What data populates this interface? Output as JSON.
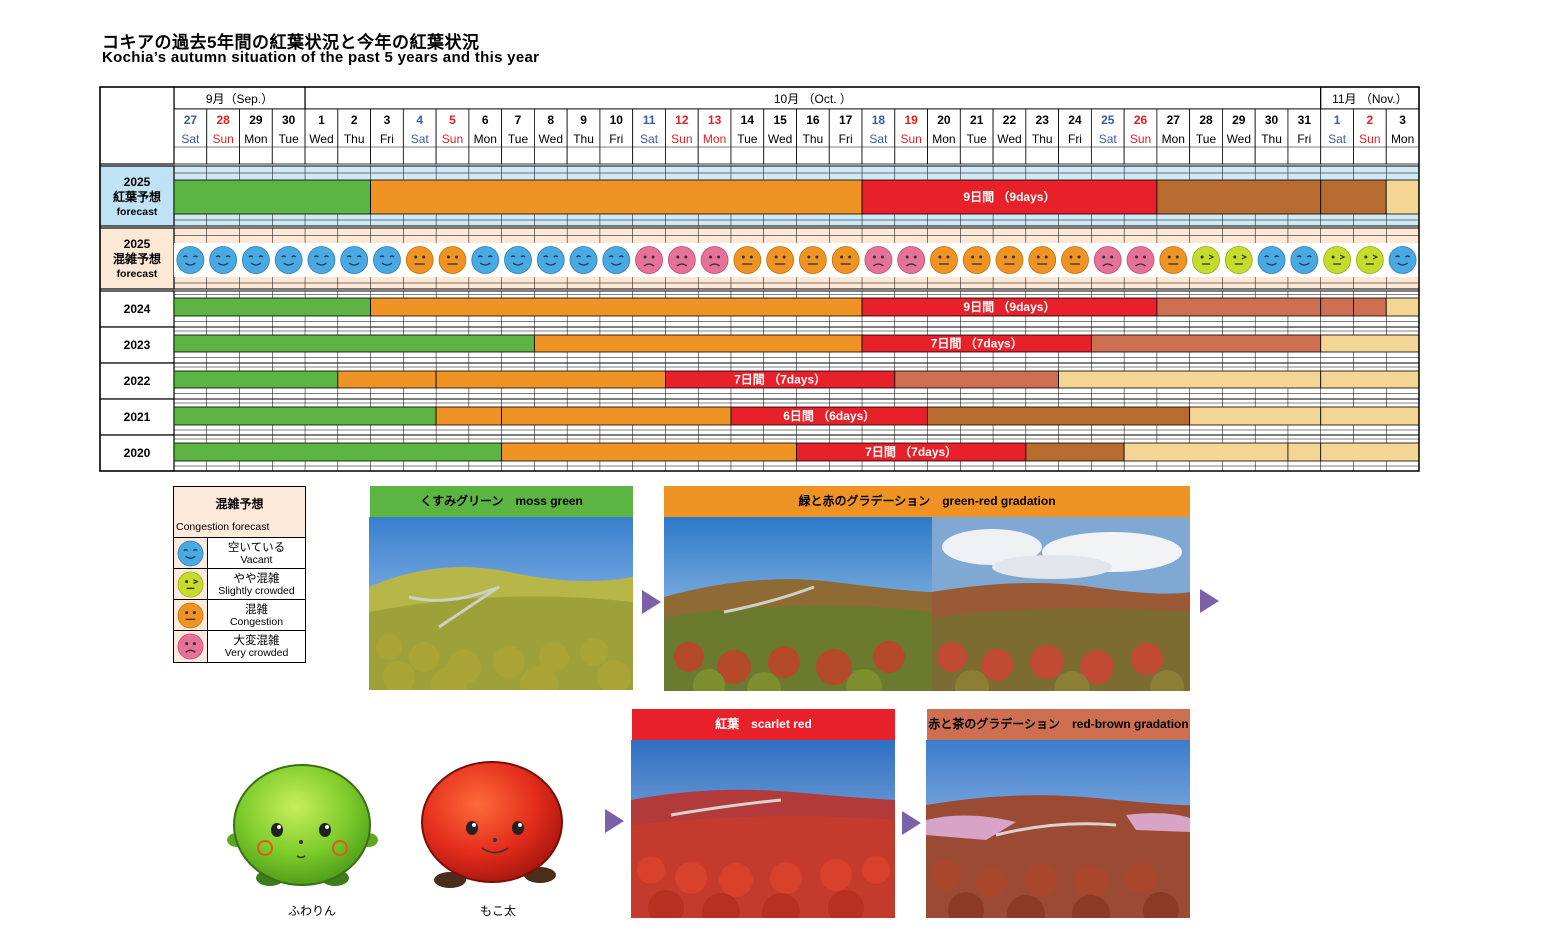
{
  "title": "コキアの過去5年間の紅葉状況と今年の紅葉状況",
  "subtitle": "Kochia’s autumn situation of the past 5 years and this year",
  "chart_data": {
    "type": "table",
    "months": [
      {
        "label": "9月（Sep.）",
        "start": 0,
        "span": 4
      },
      {
        "label": "10月 （Oct. ）",
        "start": 4,
        "span": 31
      },
      {
        "label": "11月 （Nov.）",
        "start": 35,
        "span": 3
      }
    ],
    "days": [
      {
        "d": "27",
        "w": "Sat",
        "c": "blue"
      },
      {
        "d": "28",
        "w": "Sun",
        "c": "red"
      },
      {
        "d": "29",
        "w": "Mon",
        "c": ""
      },
      {
        "d": "30",
        "w": "Tue",
        "c": ""
      },
      {
        "d": "1",
        "w": "Wed",
        "c": ""
      },
      {
        "d": "2",
        "w": "Thu",
        "c": ""
      },
      {
        "d": "3",
        "w": "Fri",
        "c": ""
      },
      {
        "d": "4",
        "w": "Sat",
        "c": "blue"
      },
      {
        "d": "5",
        "w": "Sun",
        "c": "red"
      },
      {
        "d": "6",
        "w": "Mon",
        "c": ""
      },
      {
        "d": "7",
        "w": "Tue",
        "c": ""
      },
      {
        "d": "8",
        "w": "Wed",
        "c": ""
      },
      {
        "d": "9",
        "w": "Thu",
        "c": ""
      },
      {
        "d": "10",
        "w": "Fri",
        "c": ""
      },
      {
        "d": "11",
        "w": "Sat",
        "c": "blue"
      },
      {
        "d": "12",
        "w": "Sun",
        "c": "red"
      },
      {
        "d": "13",
        "w": "Mon",
        "c": "red"
      },
      {
        "d": "14",
        "w": "Tue",
        "c": ""
      },
      {
        "d": "15",
        "w": "Wed",
        "c": ""
      },
      {
        "d": "16",
        "w": "Thu",
        "c": ""
      },
      {
        "d": "17",
        "w": "Fri",
        "c": ""
      },
      {
        "d": "18",
        "w": "Sat",
        "c": "blue"
      },
      {
        "d": "19",
        "w": "Sun",
        "c": "red"
      },
      {
        "d": "20",
        "w": "Mon",
        "c": ""
      },
      {
        "d": "21",
        "w": "Tue",
        "c": ""
      },
      {
        "d": "22",
        "w": "Wed",
        "c": ""
      },
      {
        "d": "23",
        "w": "Thu",
        "c": ""
      },
      {
        "d": "24",
        "w": "Fri",
        "c": ""
      },
      {
        "d": "25",
        "w": "Sat",
        "c": "blue"
      },
      {
        "d": "26",
        "w": "Sun",
        "c": "red"
      },
      {
        "d": "27",
        "w": "Mon",
        "c": ""
      },
      {
        "d": "28",
        "w": "Tue",
        "c": ""
      },
      {
        "d": "29",
        "w": "Wed",
        "c": ""
      },
      {
        "d": "30",
        "w": "Thu",
        "c": ""
      },
      {
        "d": "31",
        "w": "Fri",
        "c": ""
      },
      {
        "d": "1",
        "w": "Sat",
        "c": "blue"
      },
      {
        "d": "2",
        "w": "Sun",
        "c": "red"
      },
      {
        "d": "3",
        "w": "Mon",
        "c": ""
      }
    ],
    "stage_colors": {
      "green": "#5cb443",
      "orange": "#ef9424",
      "red": "#e8202a",
      "brown": "#b86b2e",
      "rust": "#cf6f52",
      "tan": "#f4d593"
    },
    "rows": [
      {
        "key": "forecast",
        "label": [
          "2025",
          "紅葉予想",
          "forecast"
        ],
        "segments": [
          {
            "stage": "green",
            "from": 0,
            "to": 6
          },
          {
            "stage": "orange",
            "from": 6,
            "to": 21
          },
          {
            "stage": "red",
            "from": 21,
            "to": 30,
            "label": "9日間 （9days）"
          },
          {
            "stage": "brown",
            "from": 30,
            "to": 35
          },
          {
            "stage": "brown",
            "from": 35,
            "to": 37
          },
          {
            "stage": "tan",
            "from": 37,
            "to": 38
          }
        ]
      },
      {
        "key": "congestion",
        "label": [
          "2025",
          "混雑予想",
          "forecast"
        ],
        "levels": [
          "vacant",
          "vacant",
          "vacant",
          "vacant",
          "vacant",
          "vacant",
          "vacant",
          "congestion",
          "congestion",
          "vacant",
          "vacant",
          "vacant",
          "vacant",
          "vacant",
          "very",
          "very",
          "very",
          "congestion",
          "congestion",
          "congestion",
          "congestion",
          "very",
          "very",
          "congestion",
          "congestion",
          "congestion",
          "congestion",
          "congestion",
          "very",
          "very",
          "congestion",
          "slight",
          "slight",
          "vacant",
          "vacant",
          "slight",
          "slight",
          "vacant"
        ]
      },
      {
        "key": "2024",
        "label": [
          "2024"
        ],
        "segments": [
          {
            "stage": "green",
            "from": 0,
            "to": 6
          },
          {
            "stage": "orange",
            "from": 6,
            "to": 21
          },
          {
            "stage": "red",
            "from": 21,
            "to": 30,
            "label": "9日間 （9days）"
          },
          {
            "stage": "rust",
            "from": 30,
            "to": 35
          },
          {
            "stage": "rust",
            "from": 35,
            "to": 36
          },
          {
            "stage": "rust",
            "from": 36,
            "to": 37
          },
          {
            "stage": "tan",
            "from": 37,
            "to": 38
          }
        ]
      },
      {
        "key": "2023",
        "label": [
          "2023"
        ],
        "segments": [
          {
            "stage": "green",
            "from": 0,
            "to": 11
          },
          {
            "stage": "orange",
            "from": 11,
            "to": 21
          },
          {
            "stage": "red",
            "from": 21,
            "to": 28,
            "label": "7日間 （7days）"
          },
          {
            "stage": "rust",
            "from": 28,
            "to": 35
          },
          {
            "stage": "tan",
            "from": 35,
            "to": 38
          }
        ]
      },
      {
        "key": "2022",
        "label": [
          "2022"
        ],
        "segments": [
          {
            "stage": "green",
            "from": 0,
            "to": 5
          },
          {
            "stage": "orange",
            "from": 5,
            "to": 8
          },
          {
            "stage": "orange",
            "from": 8,
            "to": 15
          },
          {
            "stage": "red",
            "from": 15,
            "to": 22,
            "label": "7日間 （7days）"
          },
          {
            "stage": "rust",
            "from": 22,
            "to": 27
          },
          {
            "stage": "tan",
            "from": 27,
            "to": 35
          },
          {
            "stage": "tan",
            "from": 35,
            "to": 38
          }
        ]
      },
      {
        "key": "2021",
        "label": [
          "2021"
        ],
        "segments": [
          {
            "stage": "green",
            "from": 0,
            "to": 8
          },
          {
            "stage": "orange",
            "from": 8,
            "to": 10
          },
          {
            "stage": "orange",
            "from": 10,
            "to": 17
          },
          {
            "stage": "red",
            "from": 17,
            "to": 23,
            "label": "6日間 （6days）"
          },
          {
            "stage": "brown",
            "from": 23,
            "to": 31
          },
          {
            "stage": "tan",
            "from": 31,
            "to": 35
          },
          {
            "stage": "tan",
            "from": 35,
            "to": 38
          }
        ]
      },
      {
        "key": "2020",
        "label": [
          "2020"
        ],
        "segments": [
          {
            "stage": "green",
            "from": 0,
            "to": 10
          },
          {
            "stage": "orange",
            "from": 10,
            "to": 19
          },
          {
            "stage": "red",
            "from": 19,
            "to": 26,
            "label": "7日間 （7days）"
          },
          {
            "stage": "brown",
            "from": 26,
            "to": 29
          },
          {
            "stage": "tan",
            "from": 29,
            "to": 34
          },
          {
            "stage": "tan",
            "from": 34,
            "to": 35
          },
          {
            "stage": "tan",
            "from": 35,
            "to": 38
          }
        ]
      }
    ]
  },
  "legend": {
    "title": "混雑予想",
    "subtitle": "Congestion forecast",
    "items": [
      {
        "level": "vacant",
        "jp": "空いている",
        "en": "Vacant",
        "color": "#4aa9e0"
      },
      {
        "level": "slight",
        "jp": "やや混雑",
        "en": "Slightly crowded",
        "color": "#c6dc2c"
      },
      {
        "level": "congestion",
        "jp": "混雑",
        "en": "Congestion",
        "color": "#ef9424"
      },
      {
        "level": "very",
        "jp": "大変混雑",
        "en": "Very crowded",
        "color": "#e6729a"
      }
    ]
  },
  "stages": {
    "moss": "くすみグリーン　moss green",
    "gradation": "緑と赤のグラデーション　green-red gradation",
    "scarlet": "紅葉　scarlet red",
    "redbrown": "赤と茶のグラデーション　red-brown gradation"
  },
  "mascots": {
    "fuwarin": "ふわりん",
    "mokota": "もこ太"
  }
}
